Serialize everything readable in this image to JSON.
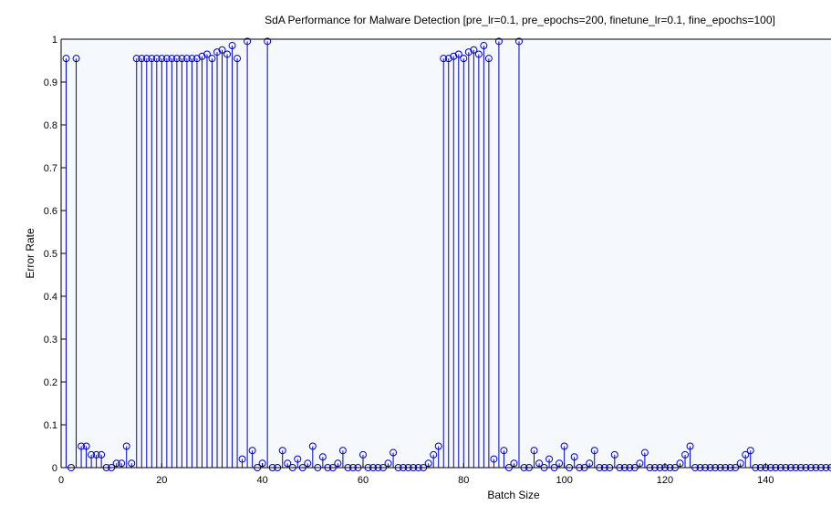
{
  "chart_data": {
    "type": "stem",
    "title": "SdA Performance for Malware Detection [pre_lr=0.1, pre_epochs=200, finetune_lr=0.1, fine_epochs=100]",
    "xlabel": "Batch Size",
    "ylabel": "Error Rate",
    "xlim": [
      0,
      153
    ],
    "ylim": [
      0,
      1
    ],
    "xticks": [
      "0",
      "20",
      "40",
      "60",
      "80",
      "100",
      "120",
      "140"
    ],
    "yticks": [
      "0",
      "0.1",
      "0.2",
      "0.3",
      "0.4",
      "0.5",
      "0.6",
      "0.7",
      "0.8",
      "0.9",
      "1"
    ],
    "grid": false,
    "colors": {
      "stem": "#0000cc",
      "axes_bg": "#f5f8fc",
      "figure_bg": "#ffffff"
    },
    "points": [
      [
        1,
        0.955
      ],
      [
        2,
        0
      ],
      [
        3,
        0.955
      ],
      [
        4,
        0.05
      ],
      [
        5,
        0.05
      ],
      [
        6,
        0.03
      ],
      [
        7,
        0.03
      ],
      [
        8,
        0.03
      ],
      [
        9,
        0
      ],
      [
        10,
        0
      ],
      [
        11,
        0.01
      ],
      [
        12,
        0.01
      ],
      [
        13,
        0.05
      ],
      [
        14,
        0.01
      ],
      [
        15,
        0.955
      ],
      [
        16,
        0.955
      ],
      [
        17,
        0.955
      ],
      [
        18,
        0.955
      ],
      [
        19,
        0.955
      ],
      [
        20,
        0.955
      ],
      [
        21,
        0.955
      ],
      [
        22,
        0.955
      ],
      [
        23,
        0.955
      ],
      [
        24,
        0.955
      ],
      [
        25,
        0.955
      ],
      [
        26,
        0.955
      ],
      [
        27,
        0.955
      ],
      [
        28,
        0.96
      ],
      [
        29,
        0.965
      ],
      [
        30,
        0.955
      ],
      [
        31,
        0.97
      ],
      [
        32,
        0.975
      ],
      [
        33,
        0.965
      ],
      [
        34,
        0.985
      ],
      [
        35,
        0.955
      ],
      [
        36,
        0.02
      ],
      [
        37,
        0.995
      ],
      [
        38,
        0.04
      ],
      [
        39,
        0
      ],
      [
        40,
        0.01
      ],
      [
        41,
        0.995
      ],
      [
        42,
        0
      ],
      [
        43,
        0
      ],
      [
        44,
        0.04
      ],
      [
        45,
        0.01
      ],
      [
        46,
        0
      ],
      [
        47,
        0.02
      ],
      [
        48,
        0
      ],
      [
        49,
        0.01
      ],
      [
        50,
        0.05
      ],
      [
        51,
        0
      ],
      [
        52,
        0.025
      ],
      [
        53,
        0
      ],
      [
        54,
        0
      ],
      [
        55,
        0.01
      ],
      [
        56,
        0.04
      ],
      [
        57,
        0
      ],
      [
        58,
        0
      ],
      [
        59,
        0
      ],
      [
        60,
        0.03
      ],
      [
        61,
        0
      ],
      [
        62,
        0
      ],
      [
        63,
        0
      ],
      [
        64,
        0
      ],
      [
        65,
        0.01
      ],
      [
        66,
        0.035
      ],
      [
        67,
        0
      ],
      [
        68,
        0
      ],
      [
        69,
        0
      ],
      [
        70,
        0
      ],
      [
        71,
        0
      ],
      [
        72,
        0
      ],
      [
        73,
        0.01
      ],
      [
        74,
        0.03
      ],
      [
        75,
        0.05
      ],
      [
        76,
        0.955
      ],
      [
        77,
        0.955
      ],
      [
        78,
        0.96
      ],
      [
        79,
        0.965
      ],
      [
        80,
        0.955
      ],
      [
        81,
        0.97
      ],
      [
        82,
        0.975
      ],
      [
        83,
        0.965
      ],
      [
        84,
        0.985
      ],
      [
        85,
        0.955
      ],
      [
        86,
        0.02
      ],
      [
        87,
        0.995
      ],
      [
        88,
        0.04
      ],
      [
        89,
        0
      ],
      [
        90,
        0.01
      ],
      [
        91,
        0.995
      ],
      [
        92,
        0
      ],
      [
        93,
        0
      ],
      [
        94,
        0.04
      ],
      [
        95,
        0.01
      ],
      [
        96,
        0
      ],
      [
        97,
        0.02
      ],
      [
        98,
        0
      ],
      [
        99,
        0.01
      ],
      [
        100,
        0.05
      ],
      [
        101,
        0
      ],
      [
        102,
        0.025
      ],
      [
        103,
        0
      ],
      [
        104,
        0
      ],
      [
        105,
        0.01
      ],
      [
        106,
        0.04
      ],
      [
        107,
        0
      ],
      [
        108,
        0
      ],
      [
        109,
        0
      ],
      [
        110,
        0.03
      ],
      [
        111,
        0
      ],
      [
        112,
        0
      ],
      [
        113,
        0
      ],
      [
        114,
        0
      ],
      [
        115,
        0.01
      ],
      [
        116,
        0.035
      ],
      [
        117,
        0
      ],
      [
        118,
        0
      ],
      [
        119,
        0
      ],
      [
        120,
        0
      ],
      [
        121,
        0
      ],
      [
        122,
        0
      ],
      [
        123,
        0.01
      ],
      [
        124,
        0.03
      ],
      [
        125,
        0.05
      ],
      [
        126,
        0
      ],
      [
        127,
        0
      ],
      [
        128,
        0
      ],
      [
        129,
        0
      ],
      [
        130,
        0
      ],
      [
        131,
        0
      ],
      [
        132,
        0
      ],
      [
        133,
        0
      ],
      [
        134,
        0
      ],
      [
        135,
        0.01
      ],
      [
        136,
        0.03
      ],
      [
        137,
        0.04
      ],
      [
        138,
        0
      ],
      [
        139,
        0
      ],
      [
        140,
        0
      ],
      [
        141,
        0
      ],
      [
        142,
        0
      ],
      [
        143,
        0
      ],
      [
        144,
        0
      ],
      [
        145,
        0
      ],
      [
        146,
        0
      ],
      [
        147,
        0
      ],
      [
        148,
        0
      ],
      [
        149,
        0
      ],
      [
        150,
        0
      ],
      [
        151,
        0
      ],
      [
        152,
        0
      ],
      [
        153,
        0
      ]
    ]
  }
}
